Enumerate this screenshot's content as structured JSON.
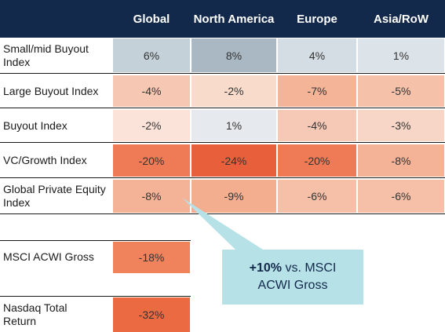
{
  "columns": [
    "Global",
    "North America",
    "Europe",
    "Asia/RoW"
  ],
  "index_rows": [
    {
      "label": "Small/mid Buyout Index",
      "values": [
        "6%",
        "8%",
        "4%",
        "1%"
      ],
      "colors": [
        "#c5d1d9",
        "#a9b8c2",
        "#d3dde3",
        "#dde4e9"
      ]
    },
    {
      "label": "Large Buyout Index",
      "values": [
        "-4%",
        "-2%",
        "-7%",
        "-5%"
      ],
      "colors": [
        "#f6c7b2",
        "#f9dbcc",
        "#f3b498",
        "#f5c1a9"
      ]
    },
    {
      "label": "Buyout Index",
      "values": [
        "-2%",
        "1%",
        "-4%",
        "-3%"
      ],
      "colors": [
        "#fbe3da",
        "#e6e9ed",
        "#f6c9b6",
        "#f8d6c7"
      ]
    },
    {
      "label": "VC/Growth Index",
      "values": [
        "-20%",
        "-24%",
        "-20%",
        "-8%"
      ],
      "colors": [
        "#ee7b55",
        "#e8603b",
        "#ee7b55",
        "#f4b396"
      ]
    },
    {
      "label": "Global Private Equity Index",
      "values": [
        "-8%",
        "-9%",
        "-6%",
        "-6%"
      ],
      "colors": [
        "#f4b396",
        "#f3ad8f",
        "#f6bfa7",
        "#f6bfa7"
      ]
    }
  ],
  "benchmark_rows": [
    {
      "label": "MSCI ACWI Gross",
      "value": "-18%",
      "color": "#f0825c"
    },
    {
      "label": "Nasdaq Total Return",
      "value": "-32%",
      "color": "#ec6a42"
    }
  ],
  "callout": {
    "bold": "+10%",
    "rest_line1": " vs. MSCI",
    "line2": "ACWI Gross",
    "color": "#b6e1e7"
  },
  "colors": {
    "header": "#13294b"
  }
}
